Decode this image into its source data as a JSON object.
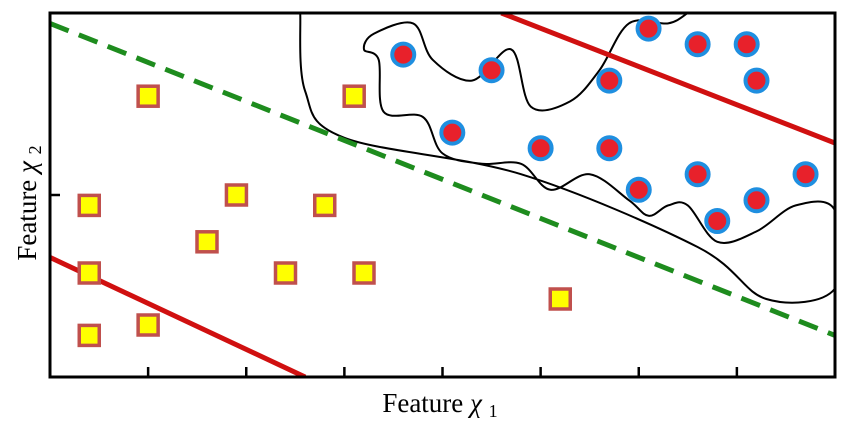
{
  "chart_data": {
    "type": "scatter",
    "title": "",
    "xlabel": "Feature",
    "xlabel_symbol": "χ",
    "xlabel_subscript": "1",
    "ylabel": "Feature",
    "ylabel_symbol": "χ",
    "ylabel_subscript": "2",
    "xlim": [
      0,
      8
    ],
    "ylim": [
      0,
      7
    ],
    "xticks": [
      1,
      2,
      3,
      4,
      5,
      6,
      7
    ],
    "yticks": [
      3.5
    ],
    "grid": false,
    "series": [
      {
        "marker": "square",
        "fill": "#ffff00",
        "edge": "#c0504d",
        "points": [
          [
            1.0,
            5.4
          ],
          [
            3.1,
            5.4
          ],
          [
            0.4,
            3.3
          ],
          [
            1.9,
            3.5
          ],
          [
            2.8,
            3.3
          ],
          [
            1.6,
            2.6
          ],
          [
            0.4,
            2.0
          ],
          [
            2.4,
            2.0
          ],
          [
            3.2,
            2.0
          ],
          [
            5.2,
            1.5
          ],
          [
            0.4,
            0.8
          ],
          [
            1.0,
            1.0
          ]
        ]
      },
      {
        "marker": "circle",
        "fill": "#e8212b",
        "edge": "#1f8fe0",
        "points": [
          [
            3.6,
            6.2
          ],
          [
            4.5,
            5.9
          ],
          [
            4.1,
            4.7
          ],
          [
            6.1,
            6.7
          ],
          [
            6.6,
            6.4
          ],
          [
            7.1,
            6.4
          ],
          [
            5.7,
            5.7
          ],
          [
            7.2,
            5.7
          ],
          [
            5.0,
            4.4
          ],
          [
            5.7,
            4.4
          ],
          [
            6.6,
            3.9
          ],
          [
            7.7,
            3.9
          ],
          [
            6.0,
            3.6
          ],
          [
            7.2,
            3.4
          ],
          [
            6.8,
            3.0
          ]
        ]
      }
    ],
    "lines": [
      {
        "style": "solid",
        "color": "#d01010",
        "points": [
          [
            0.0,
            2.3
          ],
          [
            2.6,
            0.0
          ]
        ]
      },
      {
        "style": "solid",
        "color": "#d01010",
        "points": [
          [
            4.6,
            7.0
          ],
          [
            8.0,
            4.5
          ]
        ]
      },
      {
        "style": "dashed",
        "color": "#1e8c1e",
        "points": [
          [
            0.0,
            6.8
          ],
          [
            8.0,
            0.8
          ]
        ]
      }
    ],
    "boundary": {
      "color": "#000000",
      "points": [
        [
          2.55,
          7.0
        ],
        [
          2.6,
          5.5
        ],
        [
          3.0,
          4.6
        ],
        [
          4.8,
          3.9
        ],
        [
          6.6,
          2.5
        ],
        [
          7.3,
          1.5
        ],
        [
          8.0,
          1.7
        ],
        [
          8.0,
          3.2
        ],
        [
          7.6,
          3.3
        ],
        [
          7.2,
          2.8
        ],
        [
          6.8,
          2.6
        ],
        [
          6.5,
          3.3
        ],
        [
          6.3,
          3.3
        ],
        [
          6.1,
          3.1
        ],
        [
          5.9,
          3.4
        ],
        [
          5.5,
          3.9
        ],
        [
          5.1,
          3.6
        ],
        [
          4.8,
          4.1
        ],
        [
          4.4,
          4.1
        ],
        [
          4.0,
          4.3
        ],
        [
          3.8,
          5.0
        ],
        [
          3.4,
          5.1
        ],
        [
          3.35,
          6.1
        ],
        [
          3.2,
          6.3
        ],
        [
          3.3,
          6.6
        ],
        [
          3.7,
          6.8
        ],
        [
          3.9,
          6.1
        ],
        [
          4.3,
          5.7
        ],
        [
          4.7,
          6.3
        ],
        [
          4.9,
          5.2
        ],
        [
          5.3,
          5.3
        ],
        [
          5.6,
          5.9
        ],
        [
          5.9,
          6.8
        ],
        [
          6.3,
          6.8
        ],
        [
          6.5,
          7.0
        ]
      ]
    }
  }
}
